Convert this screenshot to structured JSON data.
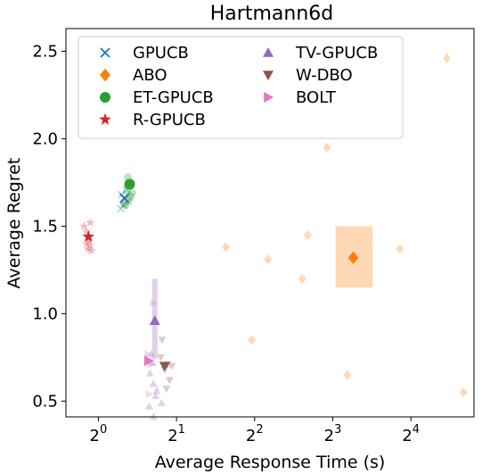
{
  "chart_data": {
    "type": "scatter",
    "title": "Hartmann6d",
    "xlabel": "Average Response Time (s)",
    "ylabel": "Average Regret",
    "x_scale": "log2",
    "xlim": [
      0.75,
      28
    ],
    "ylim": [
      0.41,
      2.63
    ],
    "x_ticks": [
      1,
      2,
      4,
      8,
      16
    ],
    "x_tick_labels": [
      {
        "base": "2",
        "exp": "0"
      },
      {
        "base": "2",
        "exp": "1"
      },
      {
        "base": "2",
        "exp": "2"
      },
      {
        "base": "2",
        "exp": "3"
      },
      {
        "base": "2",
        "exp": "4"
      }
    ],
    "y_ticks": [
      0.5,
      1.0,
      1.5,
      2.0,
      2.5
    ],
    "y_tick_labels": [
      "0.5",
      "1.0",
      "1.5",
      "2.0",
      "2.5"
    ],
    "legend": {
      "placement": "top-left",
      "columns": 2
    },
    "series": [
      {
        "name": "GPUCB",
        "marker": "x",
        "color": "#1f77b4",
        "mean": {
          "x": 1.26,
          "y": 1.66
        },
        "runs": [
          {
            "x": 1.23,
            "y": 1.68
          },
          {
            "x": 1.25,
            "y": 1.62
          },
          {
            "x": 1.28,
            "y": 1.71
          },
          {
            "x": 1.3,
            "y": 1.64
          },
          {
            "x": 1.22,
            "y": 1.6
          },
          {
            "x": 1.27,
            "y": 1.66
          }
        ]
      },
      {
        "name": "ABO",
        "marker": "diamond",
        "color": "#ff7f0e",
        "mean": {
          "x": 9.6,
          "y": 1.32
        },
        "err_box": {
          "x": [
            8.2,
            11.4
          ],
          "y": [
            1.15,
            1.5
          ]
        },
        "runs": [
          {
            "x": 22,
            "y": 2.46
          },
          {
            "x": 7.6,
            "y": 1.95
          },
          {
            "x": 3.1,
            "y": 1.38
          },
          {
            "x": 4.5,
            "y": 1.31
          },
          {
            "x": 6.4,
            "y": 1.45
          },
          {
            "x": 6.1,
            "y": 1.2
          },
          {
            "x": 14.5,
            "y": 1.37
          },
          {
            "x": 3.9,
            "y": 0.85
          },
          {
            "x": 9.1,
            "y": 0.65
          },
          {
            "x": 25.5,
            "y": 0.55
          }
        ]
      },
      {
        "name": "ET-GPUCB",
        "marker": "circle",
        "color": "#2ca02c",
        "mean": {
          "x": 1.32,
          "y": 1.74
        },
        "runs": [
          {
            "x": 1.29,
            "y": 1.7
          },
          {
            "x": 1.33,
            "y": 1.67
          },
          {
            "x": 1.27,
            "y": 1.62
          },
          {
            "x": 1.31,
            "y": 1.65
          },
          {
            "x": 1.35,
            "y": 1.69
          },
          {
            "x": 1.3,
            "y": 1.78
          },
          {
            "x": 1.26,
            "y": 1.63
          }
        ]
      },
      {
        "name": "R-GPUCB",
        "marker": "star",
        "color": "#d62728",
        "mean": {
          "x": 0.916,
          "y": 1.44
        },
        "runs": [
          {
            "x": 0.88,
            "y": 1.5
          },
          {
            "x": 0.93,
            "y": 1.52
          },
          {
            "x": 0.9,
            "y": 1.47
          },
          {
            "x": 0.92,
            "y": 1.42
          },
          {
            "x": 0.93,
            "y": 1.39
          },
          {
            "x": 0.91,
            "y": 1.37
          },
          {
            "x": 0.94,
            "y": 1.36
          },
          {
            "x": 0.9,
            "y": 1.4
          }
        ]
      },
      {
        "name": "TV-GPUCB",
        "marker": "triangle-up",
        "color": "#9467bd",
        "mean": {
          "x": 1.65,
          "y": 0.96
        },
        "err_y": [
          0.74,
          1.2
        ],
        "runs": [
          {
            "x": 1.6,
            "y": 0.77
          },
          {
            "x": 1.62,
            "y": 0.72
          },
          {
            "x": 1.58,
            "y": 0.66
          },
          {
            "x": 1.63,
            "y": 0.6
          },
          {
            "x": 1.66,
            "y": 0.53
          },
          {
            "x": 1.57,
            "y": 0.47
          },
          {
            "x": 1.63,
            "y": 0.41
          },
          {
            "x": 1.75,
            "y": 0.49
          },
          {
            "x": 1.68,
            "y": 0.56
          }
        ]
      },
      {
        "name": "W-DBO",
        "marker": "triangle-down",
        "color": "#8c564b",
        "mean": {
          "x": 1.8,
          "y": 0.7
        },
        "runs": [
          {
            "x": 1.76,
            "y": 0.85
          },
          {
            "x": 1.85,
            "y": 0.71
          },
          {
            "x": 1.92,
            "y": 0.7
          },
          {
            "x": 1.8,
            "y": 0.68
          },
          {
            "x": 1.88,
            "y": 0.62
          },
          {
            "x": 1.83,
            "y": 0.57
          },
          {
            "x": 1.74,
            "y": 0.75
          }
        ]
      },
      {
        "name": "BOLT",
        "marker": "triangle-right",
        "color": "#e377c2",
        "mean": {
          "x": 1.56,
          "y": 0.73
        },
        "runs": [
          {
            "x": 1.63,
            "y": 1.06
          },
          {
            "x": 1.55,
            "y": 0.77
          },
          {
            "x": 1.57,
            "y": 0.54
          },
          {
            "x": 1.59,
            "y": 0.71
          },
          {
            "x": 1.55,
            "y": 0.74
          }
        ]
      }
    ]
  }
}
